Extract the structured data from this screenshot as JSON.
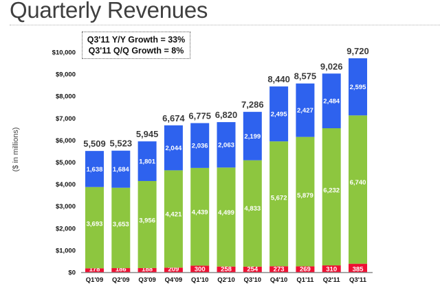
{
  "page": {
    "title": "Quarterly Revenues",
    "annotation": {
      "line1": "Q3'11 Y/Y Growth = 33%",
      "line2": "Q3'11 Q/Q Growth = 8%"
    }
  },
  "colors": {
    "bottom": "#ee1133",
    "middle": "#8dc63f",
    "top": "#2e62ee",
    "axis": "#888888"
  },
  "chart_data": {
    "type": "bar",
    "stacked": true,
    "title": "Quarterly Revenues",
    "xlabel": "",
    "ylabel": "($ in millions)",
    "ylim": [
      0,
      10000
    ],
    "yticks": [
      0,
      1000,
      2000,
      3000,
      4000,
      5000,
      6000,
      7000,
      8000,
      9000,
      10000
    ],
    "ytick_labels": [
      "$0",
      "$1,000",
      "$2,000",
      "$3,000",
      "$4,000",
      "$5,000",
      "$6,000",
      "$7,000",
      "$8,000",
      "$9,000",
      "$10,000"
    ],
    "grid": false,
    "legend": "none",
    "categories": [
      "Q1'09",
      "Q2'09",
      "Q3'09",
      "Q4'09",
      "Q1'10",
      "Q2'10",
      "Q3'10",
      "Q4'10",
      "Q1'11",
      "Q2'11",
      "Q3'11"
    ],
    "series": [
      {
        "name": "bottom (red)",
        "color": "#ee1133",
        "values": [
          178,
          186,
          188,
          209,
          300,
          258,
          254,
          273,
          269,
          310,
          385
        ],
        "labels": [
          "178",
          "186",
          "188",
          "209",
          "300",
          "258",
          "254",
          "273",
          "269",
          "310",
          "385"
        ]
      },
      {
        "name": "middle (green)",
        "color": "#8dc63f",
        "values": [
          3693,
          3653,
          3956,
          4421,
          4439,
          4499,
          4833,
          5672,
          5879,
          6232,
          6740
        ],
        "labels": [
          "3,693",
          "3,653",
          "3,956",
          "4,421",
          "4,439",
          "4,499",
          "4,833",
          "5,672",
          "5,879",
          "6,232",
          "6,740"
        ]
      },
      {
        "name": "top (blue)",
        "color": "#2e62ee",
        "values": [
          1638,
          1684,
          1801,
          2044,
          2036,
          2063,
          2199,
          2495,
          2427,
          2484,
          2595
        ],
        "labels": [
          "1,638",
          "1,684",
          "1,801",
          "2,044",
          "2,036",
          "2,063",
          "2,199",
          "2,495",
          "2,427",
          "2,484",
          "2,595"
        ]
      }
    ],
    "totals": [
      5509,
      5523,
      5945,
      6674,
      6775,
      6820,
      7286,
      8440,
      8575,
      9026,
      9720
    ],
    "total_labels": [
      "5,509",
      "5,523",
      "5,945",
      "6,674",
      "6,775",
      "6,820",
      "7,286",
      "8,440",
      "8,575",
      "9,026",
      "9,720"
    ],
    "annotations": [
      "Q3'11 Y/Y Growth = 33%",
      "Q3'11 Q/Q Growth = 8%"
    ]
  }
}
